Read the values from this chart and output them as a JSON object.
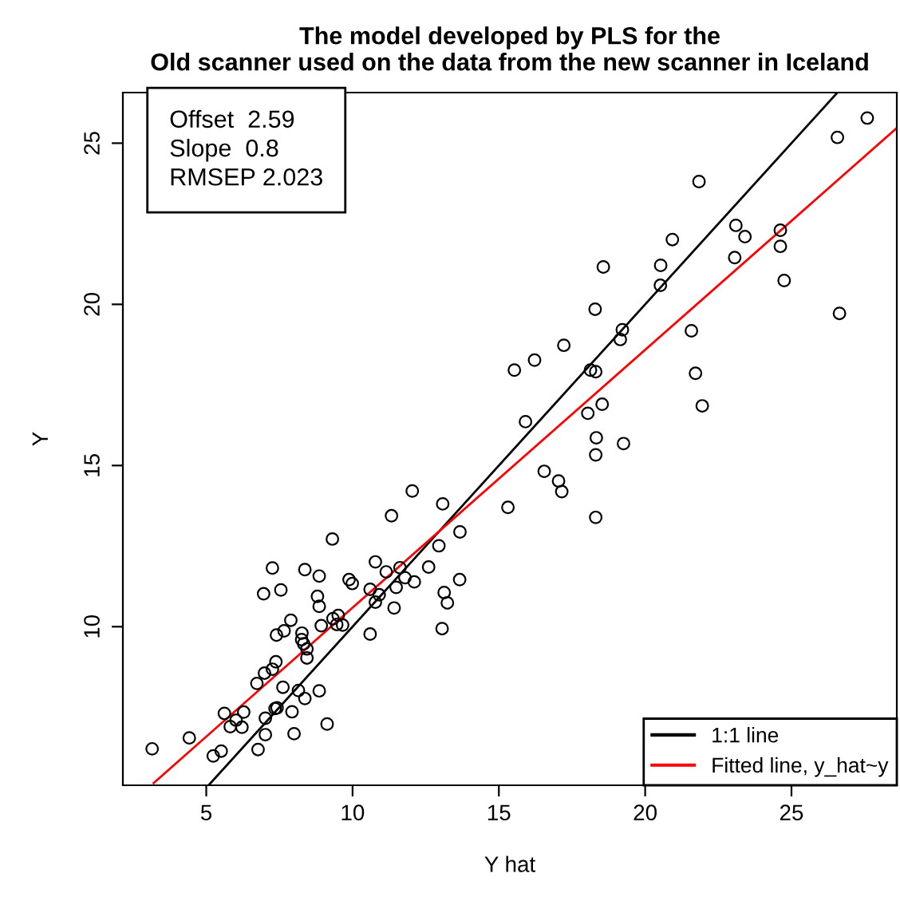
{
  "chart_data": {
    "type": "scatter",
    "title": "The model developed by PLS for the\nOld scanner used on the data from the new scanner in Iceland",
    "xlabel": "Y hat",
    "ylabel": "Y",
    "xlim": [
      2.15,
      28.6
    ],
    "ylim": [
      5.08,
      26.57
    ],
    "xticks": [
      5,
      10,
      15,
      20,
      25
    ],
    "yticks": [
      10,
      15,
      20,
      25
    ],
    "grid": false,
    "legend": "bottom right",
    "marker": "circle",
    "annotations": [
      "Offset  2.59",
      "Slope  0.8",
      "RMSEP 2.023"
    ],
    "series": [
      {
        "color": "#000000",
        "x": [
          3.15,
          4.42,
          5.24,
          5.51,
          5.62,
          5.82,
          6.02,
          6.22,
          6.28,
          6.77,
          7.02,
          7.02,
          7.35,
          7.42,
          7.93,
          8.0,
          7.62,
          8.15,
          8.37,
          8.86,
          9.13,
          6.73,
          6.99,
          7.26,
          7.38,
          6.96,
          7.26,
          7.55,
          7.4,
          7.66,
          7.89,
          8.27,
          8.26,
          8.33,
          8.44,
          8.44,
          8.37,
          8.86,
          8.8,
          8.86,
          8.93,
          9.31,
          9.33,
          9.51,
          9.46,
          9.66,
          9.88,
          9.99,
          10.6,
          10.6,
          10.78,
          10.91,
          10.78,
          11.15,
          11.33,
          11.42,
          11.49,
          11.62,
          11.79,
          12.04,
          12.11,
          12.6,
          12.95,
          13.08,
          13.06,
          13.13,
          13.24,
          13.67,
          13.66,
          15.31,
          15.91,
          15.53,
          16.22,
          17.22,
          16.55,
          17.04,
          17.15,
          18.31,
          18.31,
          18.33,
          18.04,
          18.53,
          19.26,
          18.13,
          18.31,
          18.29,
          18.57,
          19.15,
          19.22,
          20.52,
          20.53,
          20.93,
          21.84,
          21.58,
          21.72,
          21.95,
          23.06,
          23.1,
          23.41,
          24.62,
          24.62,
          24.75,
          26.57,
          27.59,
          26.64
        ],
        "values": [
          6.21,
          6.55,
          5.99,
          6.14,
          7.31,
          6.9,
          7.1,
          6.88,
          7.35,
          6.19,
          6.65,
          7.16,
          7.46,
          7.48,
          7.36,
          6.68,
          8.12,
          8.02,
          7.77,
          8.01,
          6.98,
          8.24,
          8.56,
          8.68,
          8.91,
          11.02,
          11.82,
          11.14,
          9.74,
          9.87,
          10.2,
          9.8,
          9.6,
          9.47,
          9.31,
          9.03,
          11.77,
          11.57,
          10.94,
          10.63,
          10.03,
          12.72,
          10.25,
          10.35,
          10.07,
          10.05,
          11.46,
          11.34,
          9.77,
          11.16,
          12.01,
          10.99,
          10.76,
          11.7,
          13.44,
          10.58,
          11.22,
          11.83,
          11.52,
          14.21,
          11.39,
          11.85,
          12.51,
          13.81,
          9.94,
          11.06,
          10.74,
          12.94,
          11.46,
          13.7,
          16.36,
          17.96,
          18.27,
          18.73,
          14.82,
          14.52,
          14.19,
          13.39,
          15.33,
          15.86,
          16.62,
          16.9,
          15.68,
          17.96,
          17.91,
          19.85,
          21.16,
          18.91,
          19.21,
          20.59,
          21.21,
          22.01,
          23.81,
          19.18,
          17.86,
          16.85,
          21.45,
          22.45,
          22.1,
          22.3,
          21.8,
          20.74,
          25.18,
          25.78,
          19.72
        ]
      },
      {
        "type": "line",
        "name": "1:1 line",
        "color": "#000000",
        "marker": "none",
        "x": [
          5.1,
          26.57
        ],
        "values": [
          5.1,
          26.57
        ]
      },
      {
        "type": "line",
        "name": "Fitted line, y_hat~y",
        "color": "#ff0000",
        "marker": "none",
        "x": [
          3.2,
          28.6
        ],
        "values": [
          5.15,
          25.47
        ]
      }
    ]
  }
}
